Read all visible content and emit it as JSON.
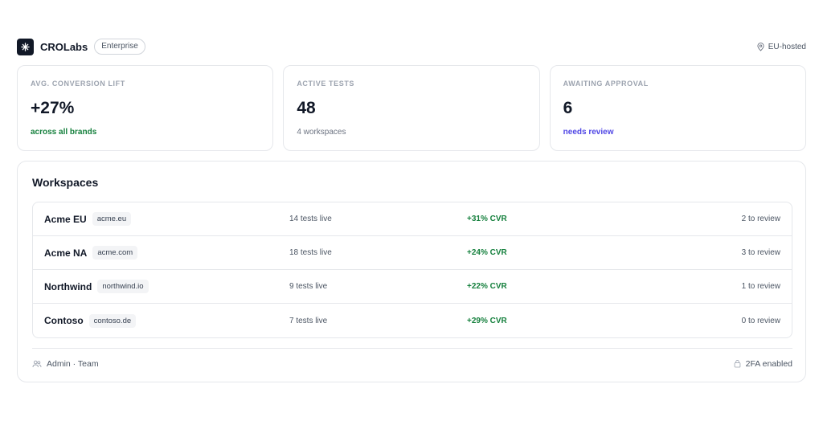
{
  "header": {
    "brand": "CROLabs",
    "plan_badge": "Enterprise",
    "region": "EU-hosted",
    "icons": {
      "logo": "asterisk-icon",
      "region": "location-pin-icon"
    }
  },
  "kpis": [
    {
      "label": "AVG. CONVERSION LIFT",
      "value": "+27%",
      "sub": "across all brands",
      "sub_color": "#15803d"
    },
    {
      "label": "ACTIVE TESTS",
      "value": "48",
      "sub": "4 workspaces",
      "sub_color": "#6b7280"
    },
    {
      "label": "AWAITING APPROVAL",
      "value": "6",
      "sub": "needs review",
      "sub_color": "#4f46e5"
    }
  ],
  "workspaces": {
    "title": "Workspaces",
    "rows": [
      {
        "name": "Acme EU",
        "domain": "acme.eu",
        "tests": "14 tests live",
        "cvr": "+31% CVR",
        "review": "2 to review"
      },
      {
        "name": "Acme NA",
        "domain": "acme.com",
        "tests": "18 tests live",
        "cvr": "+24% CVR",
        "review": "3 to review"
      },
      {
        "name": "Northwind",
        "domain": "northwind.io",
        "tests": "9 tests live",
        "cvr": "+22% CVR",
        "review": "1 to review"
      },
      {
        "name": "Contoso",
        "domain": "contoso.de",
        "tests": "7 tests live",
        "cvr": "+29% CVR",
        "review": "0 to review"
      }
    ],
    "footer": {
      "left": "Admin · Team",
      "right": "2FA enabled",
      "icons": {
        "left": "users-icon",
        "right": "lock-icon"
      }
    }
  },
  "colors": {
    "accent_green": "#15803d",
    "accent_blue": "#4f46e5",
    "border": "#e5e7eb",
    "logo_bg": "#111827"
  }
}
